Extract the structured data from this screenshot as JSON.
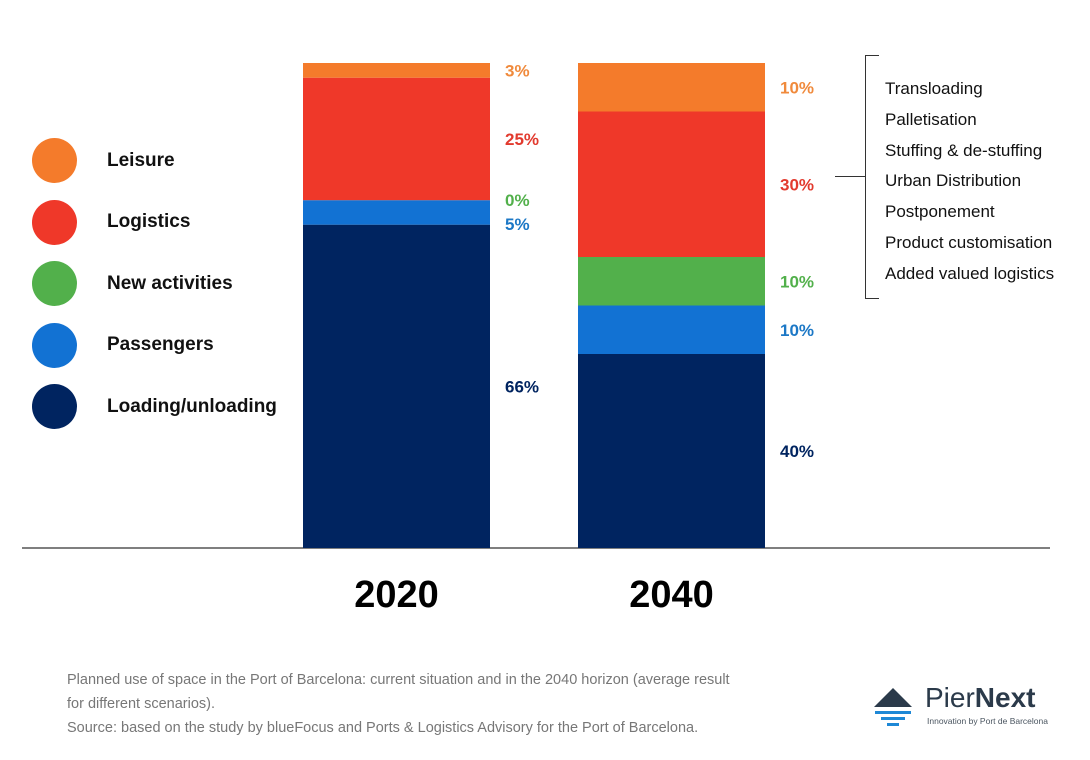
{
  "chart_data": {
    "type": "bar",
    "stacked": true,
    "categories": [
      "2020",
      "2040"
    ],
    "series": [
      {
        "name": "Loading/unloading",
        "color": "#002460",
        "values": [
          66,
          40
        ],
        "labels": [
          "66%",
          "40%"
        ]
      },
      {
        "name": "Passengers",
        "color": "#1272d3",
        "values": [
          5,
          10
        ],
        "labels": [
          "5%",
          "10%"
        ]
      },
      {
        "name": "New activities",
        "color": "#52b04b",
        "values": [
          0,
          10
        ],
        "labels": [
          "0%",
          "10%"
        ]
      },
      {
        "name": "Logistics",
        "color": "#ef3829",
        "values": [
          25,
          30
        ],
        "labels": [
          "25%",
          "30%"
        ]
      },
      {
        "name": "Leisure",
        "color": "#f47b2b",
        "values": [
          3,
          10
        ],
        "labels": [
          "3%",
          "10%"
        ]
      }
    ],
    "label_colors": {
      "Loading/unloading": "#002460",
      "Passengers": "#1c78c6",
      "New activities": "#52b04b",
      "Logistics": "#e23a2e",
      "Leisure": "#f08a3c"
    },
    "legend_order": [
      "Leisure",
      "Logistics",
      "New activities",
      "Passengers",
      "Loading/unloading"
    ],
    "legend_placement": "left",
    "ylim": [
      0,
      100
    ],
    "grid": false,
    "title": "",
    "xlabel": "",
    "ylabel": ""
  },
  "annotation": {
    "items": [
      "Transloading",
      "Palletisation",
      "Stuffing & de-stuffing",
      "Urban Distribution",
      "Postponement",
      "Product customisation",
      "Added valued logistics"
    ]
  },
  "caption": {
    "line1": "Planned use of space in the Port of Barcelona: current situation and in the 2040 horizon (average result for different scenarios).",
    "line2": "Source: based on the study by blueFocus and Ports & Logistics Advisory for the Port of Barcelona."
  },
  "logo": {
    "name_part1": "Pier",
    "name_part2": "Next",
    "tagline": "Innovation by Port de Barcelona",
    "icon": "pier-wave-icon",
    "color": "#2b3a4a",
    "wave_color": "#1e88d6"
  }
}
